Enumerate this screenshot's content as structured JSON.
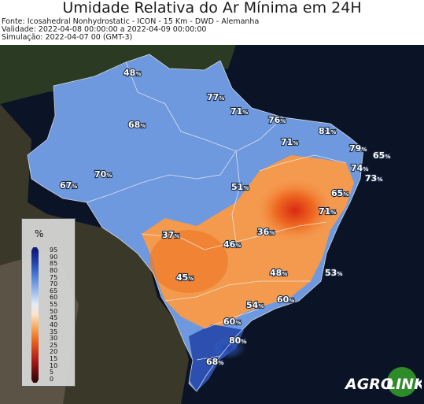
{
  "header": {
    "title": "Umidade Relativa do Ar Mínima em 24H",
    "source": "Fonte: Icosahedral Nonhydrostatic - ICON - 15 Km - DWD - Alemanha",
    "validity": "Validade: 2022-04-08 00:00:00 a 2022-04-09 00:00:00",
    "simulation": "Simulação: 2022-04-07 00 (GMT-3)"
  },
  "legend": {
    "unit": "%",
    "ticks": [
      "95",
      "90",
      "85",
      "80",
      "75",
      "70",
      "65",
      "60",
      "55",
      "50",
      "45",
      "40",
      "35",
      "30",
      "25",
      "20",
      "15",
      "10",
      "5",
      "0"
    ],
    "color_stops": [
      "#0c1d7a",
      "#1f3fa7",
      "#3d6ccc",
      "#6f99de",
      "#a5c3ee",
      "#e3ecf8",
      "#fbe3c8",
      "#f7b06a",
      "#ee7a2a",
      "#d9481a",
      "#b5201a",
      "#7a0e12",
      "#3a0508"
    ]
  },
  "map_labels": [
    {
      "name": "north-roraima",
      "value": "48",
      "unit": "%"
    },
    {
      "name": "amapa",
      "value": "77",
      "unit": "%"
    },
    {
      "name": "marajo",
      "value": "71",
      "unit": "%"
    },
    {
      "name": "maranhao-coast",
      "value": "76",
      "unit": "%"
    },
    {
      "name": "ceara",
      "value": "81",
      "unit": "%"
    },
    {
      "name": "amazonas-north",
      "value": "68",
      "unit": "%"
    },
    {
      "name": "piaui",
      "value": "71",
      "unit": "%"
    },
    {
      "name": "rn-coast",
      "value": "79",
      "unit": "%"
    },
    {
      "name": "offshore-east",
      "value": "65",
      "unit": "%"
    },
    {
      "name": "paraiba",
      "value": "74",
      "unit": "%"
    },
    {
      "name": "offshore-pernambuco",
      "value": "73",
      "unit": "%"
    },
    {
      "name": "amazonas-south",
      "value": "70",
      "unit": "%"
    },
    {
      "name": "acre",
      "value": "67",
      "unit": "%"
    },
    {
      "name": "tocantins",
      "value": "51",
      "unit": "%"
    },
    {
      "name": "pernambuco",
      "value": "65",
      "unit": "%"
    },
    {
      "name": "alagoas",
      "value": "71",
      "unit": "%"
    },
    {
      "name": "rondonia",
      "value": "37",
      "unit": "%"
    },
    {
      "name": "bahia-west",
      "value": "36",
      "unit": "%"
    },
    {
      "name": "mato-grosso",
      "value": "46",
      "unit": "%"
    },
    {
      "name": "minas",
      "value": "48",
      "unit": "%"
    },
    {
      "name": "espirito-santo-offshore",
      "value": "53",
      "unit": "%"
    },
    {
      "name": "mato-grosso-sul",
      "value": "45",
      "unit": "%"
    },
    {
      "name": "sao-paulo",
      "value": "54",
      "unit": "%"
    },
    {
      "name": "rio-offshore",
      "value": "60",
      "unit": "%"
    },
    {
      "name": "parana",
      "value": "60",
      "unit": "%"
    },
    {
      "name": "santa-catarina",
      "value": "80",
      "unit": "%"
    },
    {
      "name": "rio-grande-sul",
      "value": "68",
      "unit": "%"
    }
  ],
  "brand": {
    "logo_text_a": "AGRO",
    "logo_text_b": "LINK",
    "logo_color": "#2e8b2a"
  }
}
